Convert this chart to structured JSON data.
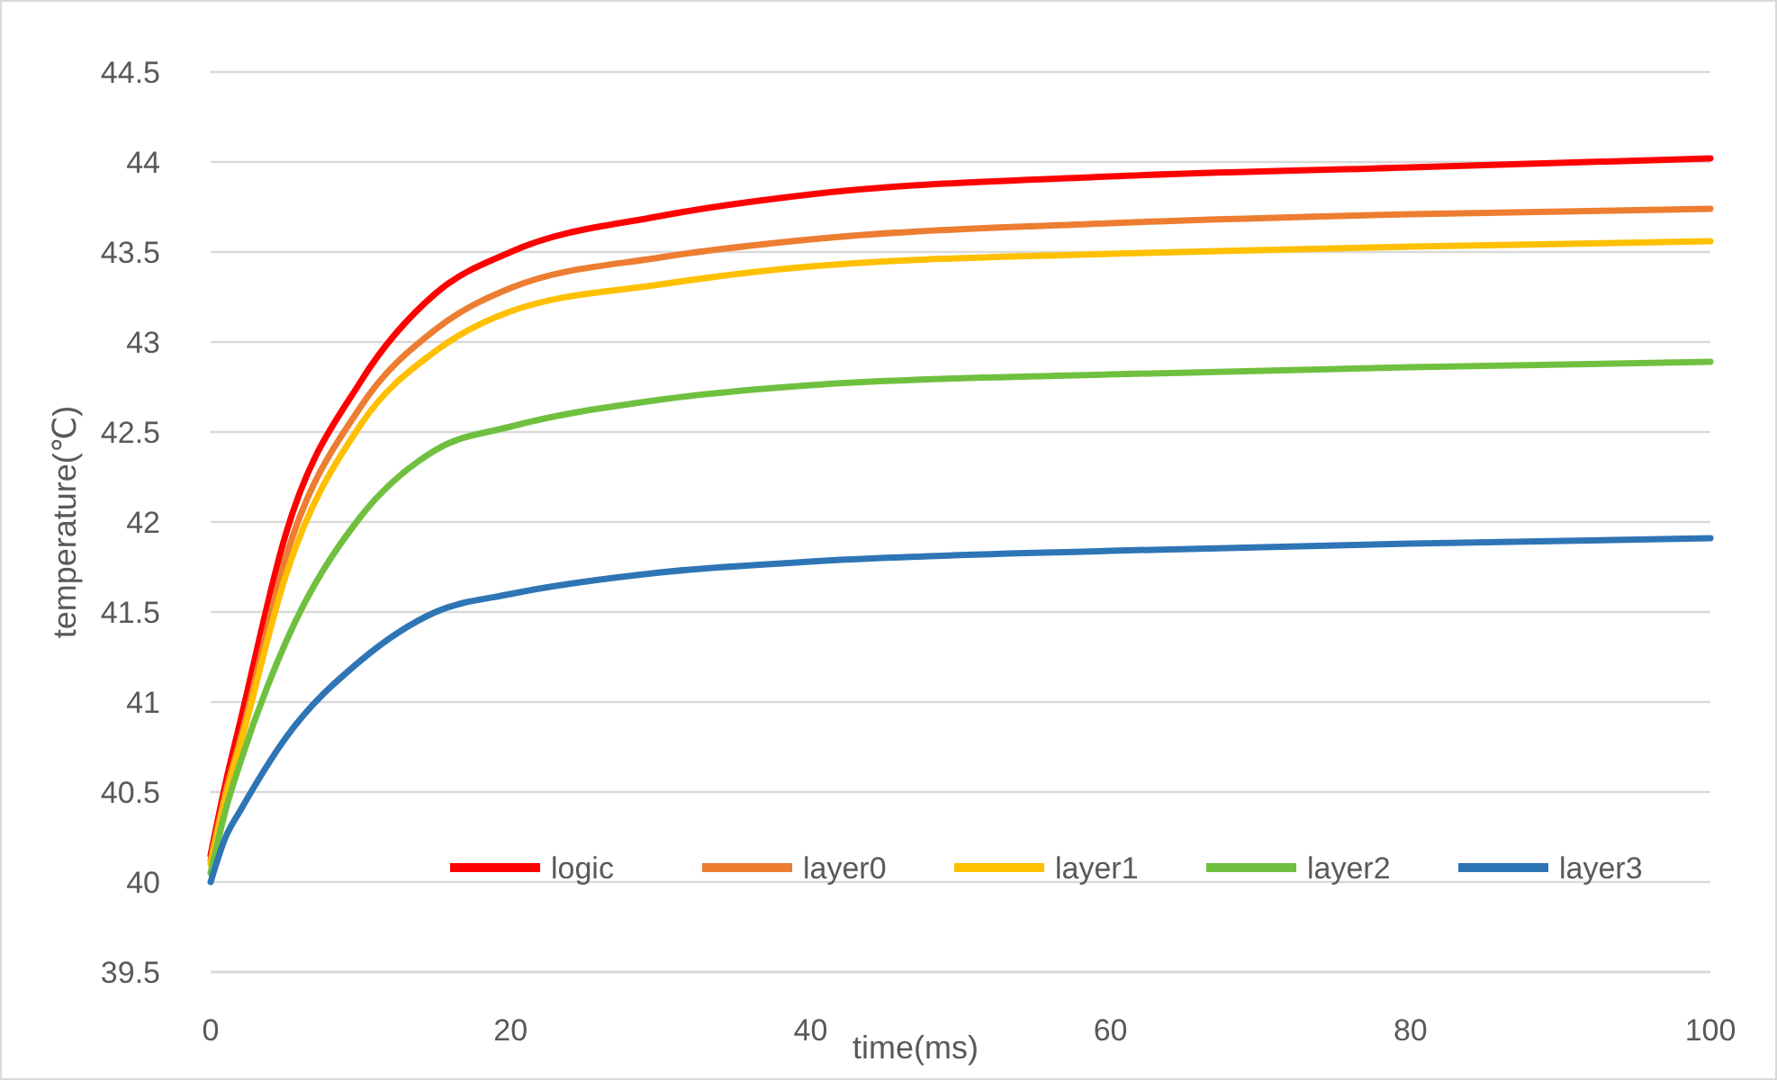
{
  "chart_data": {
    "type": "line",
    "xlabel": "time(ms)",
    "ylabel": "temperature(℃)",
    "x": [
      0,
      1,
      2,
      5,
      10,
      15,
      20,
      30,
      40,
      60,
      80,
      100
    ],
    "xlim": [
      0,
      100
    ],
    "xticks": [
      0,
      20,
      40,
      60,
      80,
      100
    ],
    "ylim": [
      39.5,
      44.5
    ],
    "yticks": [
      39.5,
      40,
      40.5,
      41,
      41.5,
      42,
      42.5,
      43,
      43.5,
      44,
      44.5
    ],
    "grid": "y",
    "legend": "bottom right",
    "line_style": "solid",
    "marker": "none",
    "series": [
      {
        "name": "logic",
        "color": "#ff0000",
        "values": [
          40.15,
          40.55,
          40.9,
          41.93,
          42.78,
          43.27,
          43.5,
          43.7,
          43.82,
          43.92,
          43.97,
          44.02
        ]
      },
      {
        "name": "layer0",
        "color": "#ed7d31",
        "values": [
          40.12,
          40.5,
          40.8,
          41.8,
          42.64,
          43.07,
          43.3,
          43.47,
          43.57,
          43.66,
          43.71,
          43.74
        ]
      },
      {
        "name": "layer1",
        "color": "#ffc000",
        "values": [
          40.1,
          40.47,
          40.77,
          41.7,
          42.54,
          42.95,
          43.17,
          43.32,
          43.42,
          43.49,
          43.53,
          43.56
        ]
      },
      {
        "name": "layer2",
        "color": "#70c040",
        "values": [
          40.05,
          40.4,
          40.67,
          41.33,
          42.03,
          42.4,
          42.53,
          42.68,
          42.76,
          42.82,
          42.86,
          42.89
        ]
      },
      {
        "name": "layer3",
        "color": "#2e75b6",
        "values": [
          40.0,
          40.25,
          40.4,
          40.8,
          41.23,
          41.5,
          41.6,
          41.72,
          41.78,
          41.84,
          41.88,
          41.91
        ]
      }
    ]
  }
}
